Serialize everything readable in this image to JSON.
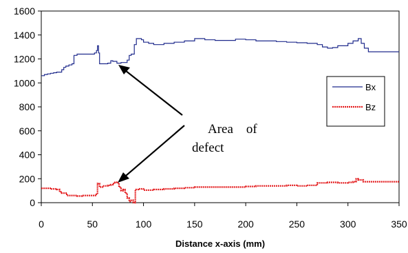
{
  "chart_data": {
    "type": "line",
    "title": "",
    "xlabel": "Distance x-axis (mm)",
    "ylabel": "",
    "xlim": [
      0,
      350
    ],
    "ylim": [
      0,
      1600
    ],
    "xticks": [
      0,
      50,
      100,
      150,
      200,
      250,
      300,
      350
    ],
    "yticks": [
      0,
      200,
      400,
      600,
      800,
      1000,
      1200,
      1400,
      1600
    ],
    "grid": false,
    "legend_position": "right",
    "annotation": {
      "line1": "Area    of",
      "line2": "defect"
    },
    "series": [
      {
        "name": "Bx",
        "color": "#1f2a8c",
        "style": "solid",
        "x": [
          0,
          3,
          6,
          9,
          12,
          15,
          18,
          20,
          22,
          24,
          27,
          30,
          32,
          35,
          40,
          45,
          50,
          52,
          54,
          55,
          56,
          57,
          60,
          65,
          68,
          70,
          72,
          74,
          76,
          78,
          80,
          84,
          86,
          88,
          90,
          91,
          93,
          95,
          98,
          100,
          105,
          110,
          120,
          130,
          140,
          150,
          155,
          160,
          170,
          180,
          190,
          200,
          210,
          220,
          230,
          240,
          250,
          260,
          270,
          275,
          280,
          285,
          290,
          300,
          305,
          310,
          313,
          316,
          320,
          330,
          340,
          350
        ],
        "y": [
          1060,
          1070,
          1075,
          1080,
          1085,
          1090,
          1090,
          1110,
          1130,
          1140,
          1150,
          1160,
          1230,
          1240,
          1240,
          1240,
          1240,
          1250,
          1270,
          1310,
          1250,
          1160,
          1160,
          1165,
          1185,
          1180,
          1180,
          1165,
          1165,
          1170,
          1170,
          1190,
          1230,
          1240,
          1240,
          1320,
          1370,
          1370,
          1360,
          1340,
          1330,
          1320,
          1330,
          1340,
          1350,
          1370,
          1370,
          1360,
          1355,
          1355,
          1365,
          1360,
          1350,
          1350,
          1345,
          1340,
          1335,
          1330,
          1320,
          1300,
          1290,
          1295,
          1310,
          1330,
          1350,
          1370,
          1330,
          1290,
          1260,
          1260,
          1260,
          1260
        ]
      },
      {
        "name": "Bz",
        "color": "#e31a1c",
        "style": "dotted",
        "x": [
          0,
          5,
          10,
          15,
          18,
          20,
          25,
          30,
          35,
          40,
          45,
          50,
          53,
          55,
          57,
          60,
          65,
          68,
          70,
          72,
          74,
          76,
          78,
          80,
          82,
          84,
          86,
          88,
          90,
          92,
          95,
          100,
          110,
          120,
          130,
          140,
          150,
          160,
          170,
          180,
          190,
          200,
          210,
          220,
          230,
          240,
          250,
          260,
          270,
          280,
          290,
          300,
          305,
          308,
          310,
          315,
          320,
          330,
          340,
          350
        ],
        "y": [
          120,
          120,
          115,
          110,
          90,
          80,
          60,
          60,
          55,
          60,
          60,
          60,
          70,
          160,
          130,
          140,
          145,
          150,
          160,
          170,
          165,
          130,
          100,
          110,
          80,
          40,
          10,
          20,
          0,
          110,
          115,
          105,
          110,
          115,
          120,
          125,
          130,
          130,
          130,
          130,
          130,
          135,
          140,
          140,
          140,
          145,
          140,
          145,
          165,
          170,
          165,
          170,
          175,
          200,
          190,
          175,
          175,
          175,
          175,
          175
        ]
      }
    ]
  }
}
